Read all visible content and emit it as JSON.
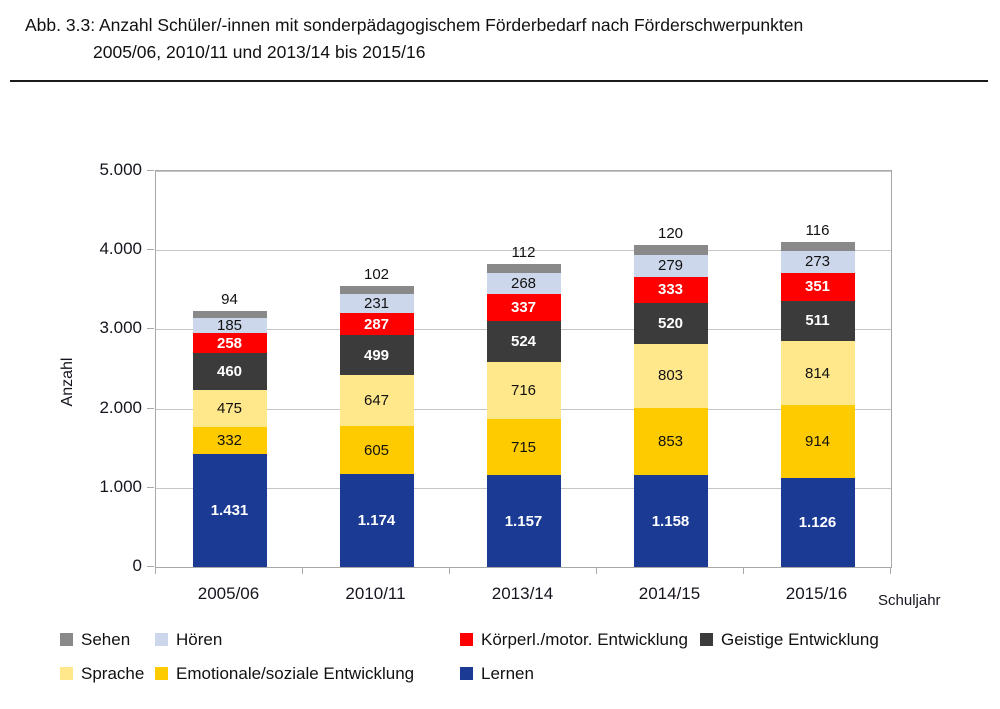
{
  "figure": {
    "caption_line1": "Abb. 3.3: Anzahl Schüler/-innen mit sonderpädagogischem Förderbedarf nach Förderschwerpunkten",
    "caption_line2": "2005/06, 2010/11 und 2013/14 bis 2015/16"
  },
  "chart_data": {
    "type": "bar",
    "stacked": true,
    "categories": [
      "2005/06",
      "2010/11",
      "2013/14",
      "2014/15",
      "2015/16"
    ],
    "series": [
      {
        "name": "Lernen",
        "color": "#1B3A94",
        "label_style": "light",
        "values": [
          1431,
          1174,
          1157,
          1158,
          1126
        ]
      },
      {
        "name": "Emotionale/soziale Entwicklung",
        "color": "#FECB00",
        "label_style": "dark",
        "values": [
          332,
          605,
          715,
          853,
          914
        ]
      },
      {
        "name": "Sprache",
        "color": "#FFE88C",
        "label_style": "dark",
        "values": [
          475,
          647,
          716,
          803,
          814
        ]
      },
      {
        "name": "Geistige Entwicklung",
        "color": "#3B3B3B",
        "label_style": "light",
        "values": [
          460,
          499,
          524,
          520,
          511
        ]
      },
      {
        "name": "Körperl./motor. Entwicklung",
        "color": "#FF0000",
        "label_style": "light",
        "values": [
          258,
          287,
          337,
          333,
          351
        ]
      },
      {
        "name": "Hören",
        "color": "#CDD7EB",
        "label_style": "dark",
        "values": [
          185,
          231,
          268,
          279,
          273
        ]
      },
      {
        "name": "Sehen",
        "color": "#898989",
        "label_style": "dark",
        "values": [
          94,
          102,
          112,
          120,
          116
        ],
        "label_position": "above"
      }
    ],
    "ylabel": "Anzahl",
    "xlabel": "Schuljahr",
    "ylim": [
      0,
      5000
    ],
    "yticks": [
      0,
      1000,
      2000,
      3000,
      4000,
      5000
    ],
    "grid": "horizontal",
    "legend_position": "bottom",
    "legend_order": [
      "Sehen",
      "Hören",
      "Körperl./motor. Entwicklung",
      "Geistige Entwicklung",
      "Sprache",
      "Emotionale/soziale Entwicklung",
      "Lernen"
    ],
    "style": {
      "grid_color": "#c6c6c6",
      "axis_color": "#a8a8a8",
      "text_color": "#15151f"
    }
  }
}
